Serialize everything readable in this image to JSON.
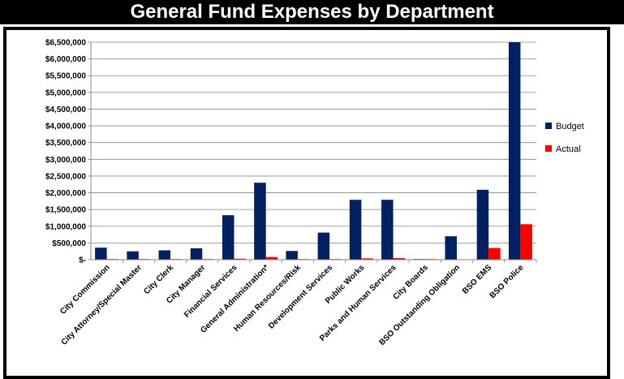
{
  "page": {
    "title": "General Fund Expenses by Department"
  },
  "chart_data": {
    "type": "bar",
    "title": "General Fund Expenses by Department",
    "xlabel": "",
    "ylabel": "",
    "ylim": [
      0,
      6500000
    ],
    "y_ticks": [
      0,
      500000,
      1000000,
      1500000,
      2000000,
      2500000,
      3000000,
      3500000,
      4000000,
      4500000,
      5000000,
      5500000,
      6000000,
      6500000
    ],
    "y_tick_labels": [
      "$-",
      "$500,000",
      "$1,000,000",
      "$1,500,000",
      "$2,000,000",
      "$2,500,000",
      "$3,000,000",
      "$3,500,000",
      "$4,000,000",
      "$4,500,000",
      "$5,000,000",
      "$5,500,000",
      "$6,000,000",
      "$6,500,000"
    ],
    "grid": true,
    "legend_position": "right",
    "categories": [
      "City Commission",
      "City Attorney/Special Master",
      "City Clerk",
      "City Manager",
      "Financial Services",
      "General Administration*",
      "Human Resources/Risk",
      "Development Services",
      "Public Works",
      "Parks and Human Services",
      "City Boards",
      "BSO Outstanding Obligation",
      "BSO EMS",
      "BSO Police"
    ],
    "series": [
      {
        "name": "Budget",
        "color": "#002060",
        "values": [
          360000,
          250000,
          280000,
          340000,
          1330000,
          2300000,
          260000,
          810000,
          1790000,
          1790000,
          20000,
          700000,
          2090000,
          6500000
        ]
      },
      {
        "name": "Actual",
        "color": "#ff0000",
        "values": [
          20000,
          15000,
          5000,
          5000,
          30000,
          80000,
          5000,
          10000,
          40000,
          50000,
          2000,
          0,
          350000,
          1060000
        ]
      }
    ]
  }
}
